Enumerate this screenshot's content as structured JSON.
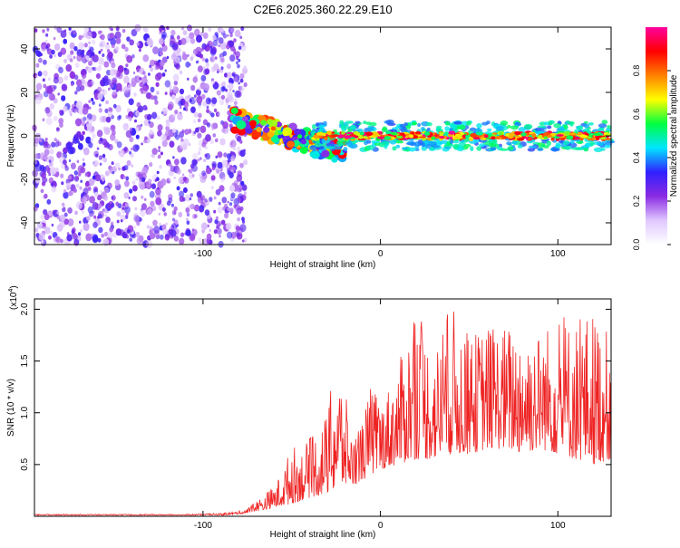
{
  "figure": {
    "title": "C2E6.2025.360.22.29.E10"
  },
  "chart_data": [
    {
      "type": "heatmap",
      "xlabel": "Height of straight line (km)",
      "ylabel": "Frequency (Hz)",
      "xlim": [
        -195,
        130
      ],
      "ylim": [
        -50,
        50
      ],
      "xticks": [
        -100,
        0,
        100
      ],
      "yticks": [
        -40,
        -20,
        0,
        20,
        40
      ],
      "colorbar": {
        "label": "Normalized spectral amplitude",
        "range": [
          0,
          1
        ],
        "ticks": [
          0.0,
          0.2,
          0.4,
          0.6,
          0.8
        ],
        "colors": [
          "#ffffff",
          "#e0c8ff",
          "#8a2be2",
          "#3020ff",
          "#00e5ff",
          "#00ff40",
          "#ffff00",
          "#ff8000",
          "#ff0000",
          "#ff00a0"
        ]
      },
      "regions": [
        {
          "name": "scattered noise",
          "x_from": -195,
          "x_to": -76,
          "freq_from": -50,
          "freq_to": 50,
          "amplitude_approx": 0.25
        },
        {
          "name": "patchy transition",
          "x_from": -84,
          "x_to": -20,
          "freq_from": -15,
          "freq_to": 12,
          "amplitude_approx": 0.7
        },
        {
          "name": "narrow band near 0 Hz",
          "x_from": -38,
          "x_to": 130,
          "freq_from": -4,
          "freq_to": 4,
          "amplitude_approx": 0.9
        }
      ]
    },
    {
      "type": "line",
      "xlabel": "Height of straight line (km)",
      "ylabel": "SNR (10 * v/v)",
      "scale_label": "(x10",
      "scale_exponent": "4",
      "xlim": [
        -195,
        130
      ],
      "ylim": [
        0,
        2.1
      ],
      "xticks": [
        -100,
        0,
        100
      ],
      "yticks": [
        0.5,
        1.0,
        1.5,
        2.0
      ],
      "series": [
        {
          "name": "SNR",
          "color": "#ee2222",
          "x": [
            -195,
            -170,
            -140,
            -110,
            -90,
            -80,
            -75,
            -70,
            -65,
            -60,
            -55,
            -50,
            -45,
            -40,
            -35,
            -30,
            -25,
            -20,
            -15,
            -10,
            -5,
            0,
            10,
            20,
            30,
            40,
            50,
            60,
            70,
            80,
            90,
            100,
            110,
            120,
            130
          ],
          "upper": [
            0.02,
            0.02,
            0.02,
            0.02,
            0.03,
            0.05,
            0.08,
            0.15,
            0.22,
            0.3,
            0.45,
            0.7,
            0.65,
            0.75,
            0.85,
            1.0,
            1.55,
            1.2,
            0.75,
            0.95,
            1.3,
            1.1,
            1.45,
            2.05,
            1.6,
            2.05,
            1.75,
            1.85,
            1.85,
            1.9,
            1.8,
            1.95,
            1.9,
            2.0,
            1.75
          ],
          "lower": [
            0.01,
            0.01,
            0.01,
            0.01,
            0.01,
            0.02,
            0.03,
            0.05,
            0.06,
            0.08,
            0.1,
            0.12,
            0.15,
            0.18,
            0.2,
            0.22,
            0.25,
            0.3,
            0.3,
            0.35,
            0.4,
            0.45,
            0.5,
            0.55,
            0.55,
            0.6,
            0.6,
            0.65,
            0.65,
            0.6,
            0.65,
            0.6,
            0.55,
            0.5,
            0.55
          ]
        }
      ]
    }
  ]
}
